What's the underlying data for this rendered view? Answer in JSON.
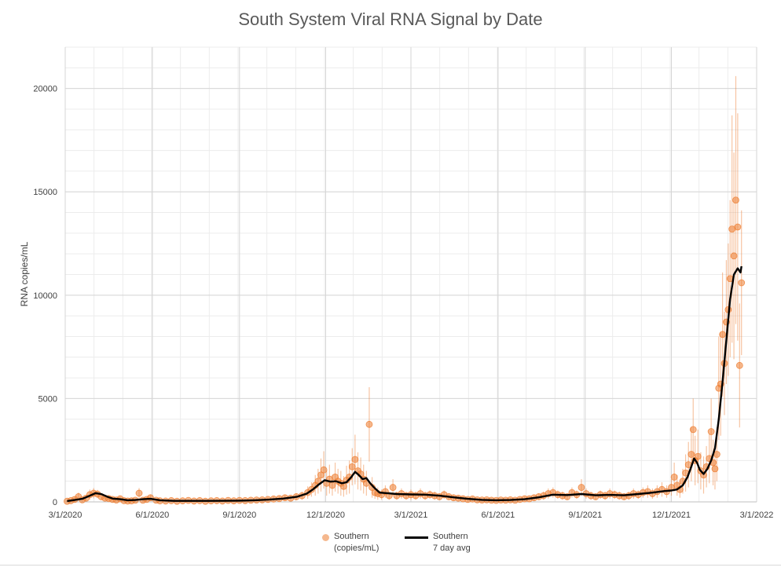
{
  "chart_data": {
    "type": "scatter",
    "title": "South System Viral RNA Signal by Date",
    "xlabel": "",
    "ylabel": "RNA copies/mL",
    "ylim": [
      0,
      22000
    ],
    "yticks": [
      0,
      5000,
      10000,
      15000,
      20000
    ],
    "xlim": [
      0,
      730
    ],
    "xticks": [
      {
        "day": 0,
        "label": "3/1/2020"
      },
      {
        "day": 92,
        "label": "6/1/2020"
      },
      {
        "day": 184,
        "label": "9/1/2020"
      },
      {
        "day": 275,
        "label": "12/1/2020"
      },
      {
        "day": 365,
        "label": "3/1/2021"
      },
      {
        "day": 457,
        "label": "6/1/2021"
      },
      {
        "day": 549,
        "label": "9/1/2021"
      },
      {
        "day": 640,
        "label": "12/1/2021"
      },
      {
        "day": 730,
        "label": "3/1/2022"
      }
    ],
    "x_units": "days since 3/1/2020",
    "series": [
      {
        "name": "Southern (copies/mL)",
        "kind": "points_with_error_bars",
        "color": "#ed7d31",
        "points": [
          [
            2,
            30,
            60
          ],
          [
            6,
            60,
            80
          ],
          [
            10,
            120,
            120
          ],
          [
            14,
            250,
            200
          ],
          [
            18,
            100,
            100
          ],
          [
            22,
            180,
            150
          ],
          [
            26,
            350,
            250
          ],
          [
            30,
            420,
            250
          ],
          [
            34,
            380,
            200
          ],
          [
            38,
            250,
            150
          ],
          [
            42,
            180,
            120
          ],
          [
            46,
            160,
            120
          ],
          [
            50,
            120,
            100
          ],
          [
            54,
            90,
            80
          ],
          [
            58,
            150,
            100
          ],
          [
            62,
            60,
            60
          ],
          [
            66,
            40,
            50
          ],
          [
            70,
            50,
            50
          ],
          [
            74,
            80,
            60
          ],
          [
            78,
            420,
            250
          ],
          [
            82,
            80,
            80
          ],
          [
            86,
            120,
            100
          ],
          [
            90,
            200,
            150
          ],
          [
            96,
            80,
            60
          ],
          [
            100,
            50,
            50
          ],
          [
            106,
            40,
            40
          ],
          [
            112,
            60,
            50
          ],
          [
            118,
            30,
            40
          ],
          [
            124,
            50,
            40
          ],
          [
            130,
            70,
            50
          ],
          [
            136,
            40,
            40
          ],
          [
            142,
            60,
            50
          ],
          [
            148,
            30,
            40
          ],
          [
            154,
            50,
            50
          ],
          [
            160,
            60,
            60
          ],
          [
            166,
            40,
            40
          ],
          [
            172,
            70,
            60
          ],
          [
            178,
            50,
            50
          ],
          [
            184,
            70,
            60
          ],
          [
            190,
            60,
            60
          ],
          [
            196,
            80,
            60
          ],
          [
            202,
            90,
            70
          ],
          [
            208,
            100,
            80
          ],
          [
            214,
            120,
            90
          ],
          [
            220,
            140,
            100
          ],
          [
            226,
            160,
            110
          ],
          [
            232,
            200,
            140
          ],
          [
            238,
            180,
            120
          ],
          [
            244,
            250,
            160
          ],
          [
            250,
            300,
            200
          ],
          [
            256,
            450,
            300
          ],
          [
            260,
            600,
            350
          ],
          [
            264,
            800,
            500
          ],
          [
            267,
            1000,
            600
          ],
          [
            270,
            1300,
            800
          ],
          [
            273,
            1550,
            900
          ],
          [
            276,
            900,
            600
          ],
          [
            279,
            1100,
            700
          ],
          [
            282,
            800,
            500
          ],
          [
            285,
            1200,
            700
          ],
          [
            288,
            1000,
            600
          ],
          [
            291,
            900,
            600
          ],
          [
            294,
            750,
            500
          ],
          [
            297,
            1050,
            700
          ],
          [
            300,
            1200,
            800
          ],
          [
            303,
            1700,
            900
          ],
          [
            306,
            2050,
            1200
          ],
          [
            309,
            1500,
            900
          ],
          [
            312,
            1350,
            800
          ],
          [
            315,
            1100,
            700
          ],
          [
            318,
            900,
            600
          ],
          [
            321,
            3750,
            1800
          ],
          [
            324,
            700,
            500
          ],
          [
            327,
            450,
            300
          ],
          [
            330,
            400,
            300
          ],
          [
            334,
            350,
            250
          ],
          [
            338,
            500,
            300
          ],
          [
            342,
            300,
            200
          ],
          [
            346,
            700,
            400
          ],
          [
            350,
            300,
            200
          ],
          [
            355,
            400,
            250
          ],
          [
            360,
            300,
            200
          ],
          [
            365,
            350,
            250
          ],
          [
            370,
            300,
            200
          ],
          [
            375,
            400,
            250
          ],
          [
            380,
            300,
            200
          ],
          [
            385,
            350,
            200
          ],
          [
            390,
            300,
            200
          ],
          [
            395,
            250,
            150
          ],
          [
            400,
            350,
            200
          ],
          [
            405,
            250,
            150
          ],
          [
            410,
            200,
            150
          ],
          [
            415,
            180,
            120
          ],
          [
            420,
            150,
            100
          ],
          [
            425,
            120,
            100
          ],
          [
            430,
            140,
            100
          ],
          [
            435,
            100,
            80
          ],
          [
            440,
            90,
            80
          ],
          [
            445,
            100,
            80
          ],
          [
            450,
            80,
            60
          ],
          [
            455,
            70,
            60
          ],
          [
            460,
            90,
            60
          ],
          [
            465,
            80,
            60
          ],
          [
            470,
            100,
            80
          ],
          [
            475,
            80,
            60
          ],
          [
            480,
            120,
            80
          ],
          [
            485,
            150,
            100
          ],
          [
            490,
            150,
            100
          ],
          [
            495,
            200,
            150
          ],
          [
            500,
            250,
            150
          ],
          [
            505,
            300,
            200
          ],
          [
            510,
            400,
            250
          ],
          [
            515,
            450,
            250
          ],
          [
            520,
            350,
            200
          ],
          [
            525,
            300,
            200
          ],
          [
            530,
            250,
            150
          ],
          [
            535,
            450,
            250
          ],
          [
            540,
            350,
            200
          ],
          [
            545,
            700,
            400
          ],
          [
            550,
            400,
            250
          ],
          [
            555,
            300,
            200
          ],
          [
            560,
            250,
            150
          ],
          [
            565,
            350,
            200
          ],
          [
            570,
            300,
            200
          ],
          [
            575,
            400,
            250
          ],
          [
            580,
            350,
            200
          ],
          [
            585,
            300,
            200
          ],
          [
            590,
            250,
            150
          ],
          [
            595,
            300,
            200
          ],
          [
            600,
            400,
            250
          ],
          [
            605,
            350,
            200
          ],
          [
            610,
            450,
            250
          ],
          [
            615,
            500,
            300
          ],
          [
            620,
            400,
            250
          ],
          [
            625,
            500,
            300
          ],
          [
            630,
            600,
            350
          ],
          [
            635,
            500,
            300
          ],
          [
            640,
            700,
            400
          ],
          [
            643,
            1200,
            700
          ],
          [
            646,
            800,
            500
          ],
          [
            649,
            600,
            400
          ],
          [
            652,
            1000,
            600
          ],
          [
            655,
            1400,
            900
          ],
          [
            658,
            1800,
            1100
          ],
          [
            661,
            2300,
            1300
          ],
          [
            663,
            3500,
            1500
          ],
          [
            665,
            2000,
            1200
          ],
          [
            668,
            2200,
            1300
          ],
          [
            671,
            1500,
            900
          ],
          [
            674,
            1300,
            900
          ],
          [
            677,
            1700,
            1000
          ],
          [
            680,
            2100,
            1200
          ],
          [
            682,
            3400,
            1600
          ],
          [
            684,
            1900,
            1100
          ],
          [
            686,
            1600,
            1000
          ],
          [
            688,
            2300,
            1300
          ],
          [
            690,
            5500,
            2500
          ],
          [
            692,
            5700,
            2500
          ],
          [
            694,
            8100,
            3000
          ],
          [
            696,
            6700,
            2500
          ],
          [
            698,
            8700,
            3000
          ],
          [
            700,
            9300,
            3200
          ],
          [
            702,
            10800,
            3800
          ],
          [
            704,
            13200,
            5500
          ],
          [
            706,
            11900,
            5000
          ],
          [
            708,
            14600,
            6000
          ],
          [
            710,
            13300,
            5500
          ],
          [
            712,
            6600,
            3000
          ],
          [
            714,
            10600,
            3500
          ]
        ]
      },
      {
        "name": "Southern 7 day avg",
        "kind": "line",
        "color": "#000000",
        "points": [
          [
            2,
            40
          ],
          [
            10,
            90
          ],
          [
            18,
            150
          ],
          [
            26,
            300
          ],
          [
            32,
            420
          ],
          [
            38,
            380
          ],
          [
            44,
            260
          ],
          [
            50,
            160
          ],
          [
            58,
            130
          ],
          [
            66,
            80
          ],
          [
            74,
            90
          ],
          [
            82,
            130
          ],
          [
            90,
            150
          ],
          [
            100,
            80
          ],
          [
            115,
            50
          ],
          [
            130,
            50
          ],
          [
            150,
            50
          ],
          [
            170,
            55
          ],
          [
            184,
            60
          ],
          [
            200,
            80
          ],
          [
            215,
            110
          ],
          [
            230,
            160
          ],
          [
            245,
            250
          ],
          [
            255,
            400
          ],
          [
            262,
            620
          ],
          [
            268,
            850
          ],
          [
            274,
            1050
          ],
          [
            280,
            980
          ],
          [
            286,
            1000
          ],
          [
            292,
            900
          ],
          [
            297,
            950
          ],
          [
            302,
            1200
          ],
          [
            306,
            1450
          ],
          [
            310,
            1300
          ],
          [
            314,
            1100
          ],
          [
            318,
            1150
          ],
          [
            322,
            900
          ],
          [
            326,
            700
          ],
          [
            332,
            450
          ],
          [
            340,
            420
          ],
          [
            350,
            380
          ],
          [
            365,
            360
          ],
          [
            380,
            350
          ],
          [
            395,
            300
          ],
          [
            410,
            220
          ],
          [
            425,
            150
          ],
          [
            440,
            100
          ],
          [
            455,
            80
          ],
          [
            470,
            90
          ],
          [
            485,
            130
          ],
          [
            500,
            220
          ],
          [
            515,
            350
          ],
          [
            530,
            330
          ],
          [
            545,
            380
          ],
          [
            560,
            320
          ],
          [
            575,
            340
          ],
          [
            590,
            320
          ],
          [
            605,
            380
          ],
          [
            620,
            450
          ],
          [
            632,
            520
          ],
          [
            640,
            550
          ],
          [
            646,
            600
          ],
          [
            652,
            800
          ],
          [
            657,
            1200
          ],
          [
            661,
            1700
          ],
          [
            664,
            2100
          ],
          [
            667,
            1900
          ],
          [
            670,
            1550
          ],
          [
            674,
            1350
          ],
          [
            678,
            1600
          ],
          [
            682,
            2000
          ],
          [
            686,
            2600
          ],
          [
            690,
            4000
          ],
          [
            694,
            5800
          ],
          [
            698,
            7800
          ],
          [
            702,
            9800
          ],
          [
            706,
            11000
          ],
          [
            710,
            11300
          ],
          [
            713,
            11100
          ],
          [
            714,
            11400
          ]
        ]
      }
    ],
    "legend": [
      {
        "label": "Southern\n(copies/mL)",
        "symbol": "marker"
      },
      {
        "label": "Southern\n7 day avg",
        "symbol": "line"
      }
    ],
    "legend_position": "bottom-center",
    "grid": true
  }
}
